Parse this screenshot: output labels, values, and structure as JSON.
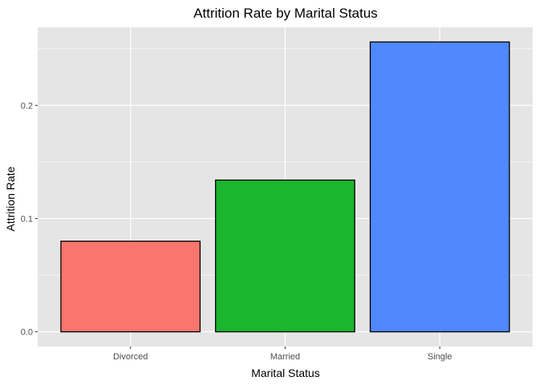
{
  "chart_data": {
    "type": "bar",
    "title": "Attrition Rate by Marital Status",
    "xlabel": "Marital Status",
    "ylabel": "Attrition Rate",
    "categories": [
      "Divorced",
      "Married",
      "Single"
    ],
    "values": [
      0.08,
      0.134,
      0.256
    ],
    "colors": [
      "#F8766D",
      "#1BB52E",
      "#5088FF"
    ],
    "ylim": [
      -0.013,
      0.269
    ],
    "yticks": [
      0.0,
      0.1,
      0.2
    ],
    "ytick_labels": [
      "0.0",
      "0.1",
      "0.2"
    ],
    "yminor": [
      0.05,
      0.15,
      0.25
    ],
    "grid": true,
    "legend": "none",
    "panel_background": "#E5E5E5",
    "grid_color": "#FFFFFF",
    "bar_outline": "#000000"
  }
}
